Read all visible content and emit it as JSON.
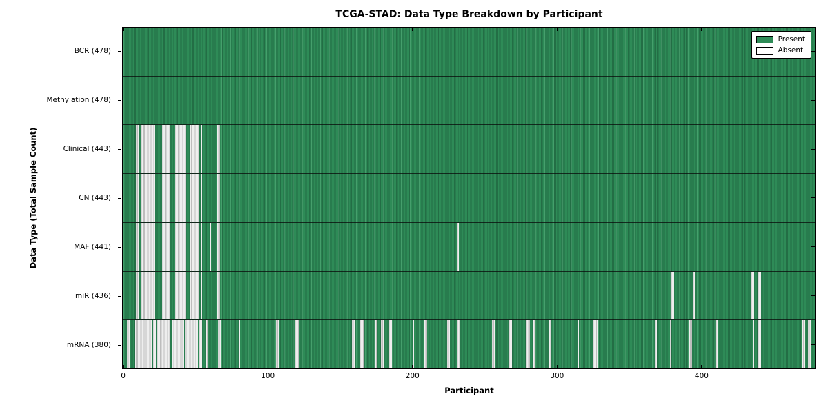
{
  "chart_data": {
    "type": "heatmap",
    "title": "TCGA-STAD: Data Type Breakdown by Participant",
    "xlabel": "Participant",
    "ylabel": "Data Type (Total Sample Count)",
    "x_ticks": [
      0,
      100,
      200,
      300,
      400
    ],
    "xlim": [
      0,
      478
    ],
    "n_participants": 478,
    "grid": false,
    "legend": {
      "position": "upper right",
      "entries": [
        {
          "label": "Present",
          "color": "#2e8b57"
        },
        {
          "label": "Absent",
          "color": "#ffffff"
        }
      ]
    },
    "colors": {
      "present": "#2e8b57",
      "present_edge": "#236e45",
      "absent_fill": "#eeeeee",
      "absent_edge": "#bdbdbd",
      "frame": "#000000",
      "background": "#ffffff"
    },
    "rows": [
      {
        "name": "BCR",
        "label": "BCR (478)",
        "total": 478,
        "absent_ranges": []
      },
      {
        "name": "Methylation",
        "label": "Methylation (478)",
        "total": 478,
        "absent_ranges": []
      },
      {
        "name": "Clinical",
        "label": "Clinical (443)",
        "total": 443,
        "absent_ranges": [
          [
            9,
            10
          ],
          [
            13,
            21
          ],
          [
            27,
            32
          ],
          [
            36,
            43
          ],
          [
            46,
            52
          ],
          [
            54,
            54
          ],
          [
            65,
            66
          ]
        ]
      },
      {
        "name": "CN",
        "label": "CN (443)",
        "total": 443,
        "absent_ranges": [
          [
            9,
            10
          ],
          [
            13,
            21
          ],
          [
            27,
            32
          ],
          [
            36,
            43
          ],
          [
            46,
            52
          ],
          [
            54,
            54
          ],
          [
            65,
            66
          ]
        ]
      },
      {
        "name": "MAF",
        "label": "MAF (441)",
        "total": 441,
        "absent_ranges": [
          [
            9,
            10
          ],
          [
            13,
            21
          ],
          [
            27,
            32
          ],
          [
            36,
            43
          ],
          [
            46,
            52
          ],
          [
            54,
            54
          ],
          [
            60,
            60
          ],
          [
            65,
            66
          ],
          [
            231,
            231
          ]
        ]
      },
      {
        "name": "miR",
        "label": "miR (436)",
        "total": 436,
        "absent_ranges": [
          [
            9,
            10
          ],
          [
            13,
            21
          ],
          [
            27,
            32
          ],
          [
            36,
            43
          ],
          [
            46,
            52
          ],
          [
            54,
            54
          ],
          [
            65,
            66
          ],
          [
            379,
            380
          ],
          [
            394,
            394
          ],
          [
            434,
            435
          ],
          [
            439,
            440
          ]
        ]
      },
      {
        "name": "mRNA",
        "label": "mRNA (380)",
        "total": 380,
        "absent_ranges": [
          [
            3,
            4
          ],
          [
            8,
            19
          ],
          [
            21,
            22
          ],
          [
            24,
            32
          ],
          [
            34,
            41
          ],
          [
            43,
            51
          ],
          [
            53,
            54
          ],
          [
            57,
            58
          ],
          [
            66,
            67
          ],
          [
            80,
            80
          ],
          [
            106,
            107
          ],
          [
            119,
            121
          ],
          [
            158,
            159
          ],
          [
            164,
            166
          ],
          [
            174,
            175
          ],
          [
            178,
            179
          ],
          [
            184,
            185
          ],
          [
            200,
            200
          ],
          [
            208,
            209
          ],
          [
            224,
            225
          ],
          [
            231,
            232
          ],
          [
            255,
            256
          ],
          [
            267,
            268
          ],
          [
            279,
            280
          ],
          [
            283,
            284
          ],
          [
            294,
            295
          ],
          [
            314,
            314
          ],
          [
            325,
            327
          ],
          [
            368,
            368
          ],
          [
            378,
            378
          ],
          [
            391,
            392
          ],
          [
            410,
            410
          ],
          [
            435,
            435
          ],
          [
            439,
            440
          ],
          [
            469,
            470
          ],
          [
            473,
            474
          ]
        ]
      }
    ]
  }
}
